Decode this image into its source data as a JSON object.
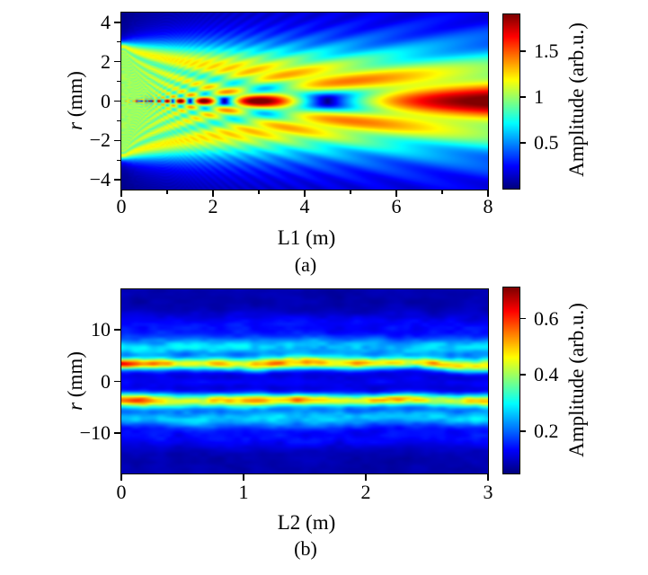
{
  "figure": {
    "background": "#ffffff",
    "frame_color": "#000000",
    "colormap_name": "jet",
    "colormap_anchors": [
      "#00007f",
      "#0000ff",
      "#00ffff",
      "#7fff7f",
      "#ffff00",
      "#ff0000",
      "#7f0000"
    ]
  },
  "chart_data": [
    {
      "type": "heatmap",
      "caption": "(a)",
      "xlabel": "L1 (m)",
      "ylabel": "r (mm)",
      "ylabel_italic": "r",
      "ylabel_unit": " (mm)",
      "colorbar_label": "Amplitude (arb.u.)",
      "x_range": [
        0,
        8
      ],
      "y_range": [
        -4.5,
        4.5
      ],
      "x_ticks": [
        0,
        2,
        4,
        6,
        8
      ],
      "x_minor_ticks": [
        1,
        3,
        5,
        7
      ],
      "y_ticks": [
        4,
        2,
        0,
        -2,
        -4
      ],
      "y_minor_ticks": [
        3,
        1,
        -1,
        -3
      ],
      "colormap": "jet",
      "grid": false,
      "colorbar": {
        "vmin": 0,
        "vmax": 1.9,
        "ticks": [
          1.5,
          1,
          0.5
        ]
      },
      "description": "Fresnel diffraction amplitude of a plane wave behind a circular aperture of radius 3 mm: flat amplitude 1 region converging from r = +/-3 mm, on-axis oscillation maxima near L1 = 0.7, 0.8, 1.0, 1.3, 1.8 and 3.0 m, on-axis null near 4.5 m, broad bright on-axis lobe from 6 to 8 m, conical edge-wave fringe fan",
      "model": {
        "kind": "circular-aperture-fresnel",
        "aperture_radius_mm": 3.0,
        "wavelength_um": 1.0,
        "z_min_m": 0.08
      }
    },
    {
      "type": "heatmap",
      "caption": "(b)",
      "xlabel": "L2 (m)",
      "ylabel": "r (mm)",
      "ylabel_italic": "r",
      "ylabel_unit": " (mm)",
      "colorbar_label": "Amplitude (arb.u.)",
      "x_range": [
        0,
        3
      ],
      "y_range": [
        -17.8,
        17.8
      ],
      "x_ticks": [
        0,
        1,
        2,
        3
      ],
      "x_minor_ticks": [],
      "y_ticks": [
        10,
        0,
        -10
      ],
      "y_minor_ticks": [],
      "colormap": "jet",
      "grid": false,
      "colorbar": {
        "vmin": 0.05,
        "vmax": 0.71,
        "ticks": [
          0.6,
          0.4,
          0.2
        ]
      },
      "description": "Quasi-stationary annular beam over 3 m: speckled yellow-orange rings at r = +/-3 mm with amplitude near 0.5 (orange-red near L2 = 0), cyan shells at r = +/-7 mm near 0.25, faint shells near +/-11 mm, dark blue axis and background near 0.1",
      "model": {
        "kind": "ring-beam-noise",
        "background": 0.08,
        "rings": [
          {
            "r_mm": 3.3,
            "sigma_mm": 1.3,
            "amp": 0.4
          },
          {
            "r_mm": 6.8,
            "sigma_mm": 2.0,
            "amp": 0.19
          },
          {
            "r_mm": 11.0,
            "sigma_mm": 2.0,
            "amp": 0.055
          },
          {
            "r_mm": 0.0,
            "sigma_mm": 1.0,
            "amp": 0.045
          }
        ],
        "left_boost": {
          "amp": 0.18,
          "z_scale_m": 0.3
        },
        "noise": {
          "seed": 11,
          "amp": 0.2,
          "cell_z_m": 0.16,
          "cell_r_mm": 1.7,
          "wobble_mm": 0.6
        }
      }
    }
  ]
}
